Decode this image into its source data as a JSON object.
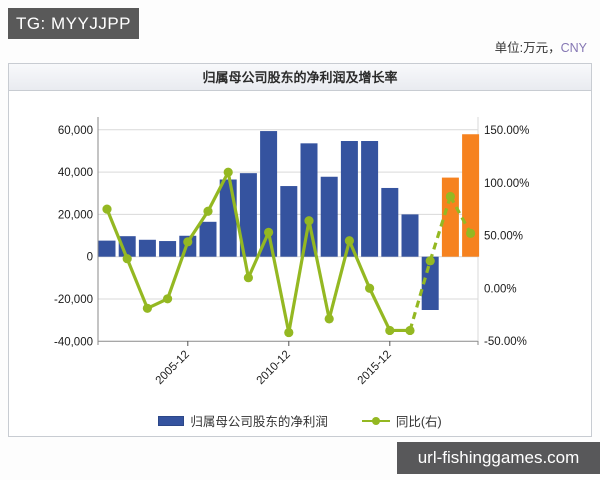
{
  "watermark_top": "TG: MYYJJPP",
  "unit": {
    "prefix": "单位:万元，",
    "currency": "CNY"
  },
  "panel": {
    "title": "归属母公司股东的净利润及增长率"
  },
  "legend": [
    {
      "label": "归属母公司股东的净利润",
      "type": "bar"
    },
    {
      "label": "同比(右)",
      "type": "line"
    }
  ],
  "watermark_bottom": "url-fishinggames.com",
  "colors": {
    "bar": "#35539f",
    "bar_estimate": "#f6821f",
    "line": "#94b822",
    "grid": "#d9d9d9",
    "axis": "#8a8a8a",
    "tick_text": "#1a1a1a",
    "cny_text": "#8577b3"
  },
  "chart_data": {
    "type": "bar",
    "title": "归属母公司股东的净利润及增长率",
    "categories": [
      "2001-12",
      "2002-12",
      "2003-12",
      "2004-12",
      "2005-12",
      "2006-12",
      "2007-12",
      "2008-12",
      "2009-12",
      "2010-12",
      "2011-12",
      "2012-12",
      "2013-12",
      "2014-12",
      "2015-12",
      "2016-12",
      "2017-12",
      "2018-12",
      "2019-12"
    ],
    "visible_x_ticks": [
      {
        "index": 4,
        "label": "2005-12"
      },
      {
        "index": 9,
        "label": "2010-12"
      },
      {
        "index": 14,
        "label": "2015-12"
      }
    ],
    "series": [
      {
        "name": "归属母公司股东的净利润",
        "type": "bar",
        "axis": "left",
        "values": [
          7600,
          9700,
          8000,
          7400,
          9900,
          16500,
          36500,
          39500,
          59400,
          33400,
          53600,
          37800,
          54700,
          54700,
          32500,
          20000,
          -25200,
          37400,
          57900
        ],
        "estimate_from_index": 17
      },
      {
        "name": "同比(右)",
        "type": "line",
        "axis": "right",
        "values_pct": [
          75,
          28,
          -19,
          -10,
          44,
          73,
          110,
          10,
          53,
          -42,
          64,
          -29,
          45,
          0,
          -40,
          -40,
          26,
          87,
          52
        ],
        "dashed_from_point": 15
      }
    ],
    "left_axis": {
      "ticks": [
        "60,000",
        "40,000",
        "20,000",
        "0",
        "-20,000",
        "-40,000"
      ],
      "min": -40000,
      "max": 60000,
      "unit": "万元"
    },
    "right_axis": {
      "ticks": [
        "150.00%",
        "100.00%",
        "50.00%",
        "0.00%",
        "-50.00%"
      ],
      "min": -50,
      "max": 150
    },
    "grid": "horizontal",
    "legend_position": "bottom"
  }
}
